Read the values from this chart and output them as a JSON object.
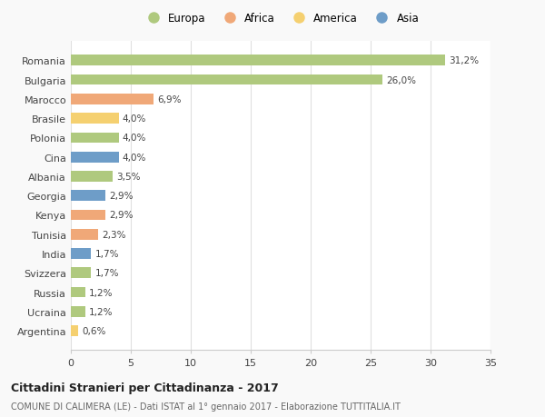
{
  "categories": [
    "Romania",
    "Bulgaria",
    "Marocco",
    "Brasile",
    "Polonia",
    "Cina",
    "Albania",
    "Georgia",
    "Kenya",
    "Tunisia",
    "India",
    "Svizzera",
    "Russia",
    "Ucraina",
    "Argentina"
  ],
  "values": [
    31.2,
    26.0,
    6.9,
    4.0,
    4.0,
    4.0,
    3.5,
    2.9,
    2.9,
    2.3,
    1.7,
    1.7,
    1.2,
    1.2,
    0.6
  ],
  "labels": [
    "31,2%",
    "26,0%",
    "6,9%",
    "4,0%",
    "4,0%",
    "4,0%",
    "3,5%",
    "2,9%",
    "2,9%",
    "2,3%",
    "1,7%",
    "1,7%",
    "1,2%",
    "1,2%",
    "0,6%"
  ],
  "colors": [
    "#afc97e",
    "#afc97e",
    "#f0a878",
    "#f5d070",
    "#afc97e",
    "#6e9dc8",
    "#afc97e",
    "#6e9dc8",
    "#f0a878",
    "#f0a878",
    "#6e9dc8",
    "#afc97e",
    "#afc97e",
    "#afc97e",
    "#f5d070"
  ],
  "legend_labels": [
    "Europa",
    "Africa",
    "America",
    "Asia"
  ],
  "legend_colors": [
    "#afc97e",
    "#f0a878",
    "#f5d070",
    "#6e9dc8"
  ],
  "title": "Cittadini Stranieri per Cittadinanza - 2017",
  "subtitle": "COMUNE DI CALIMERA (LE) - Dati ISTAT al 1° gennaio 2017 - Elaborazione TUTTITALIA.IT",
  "xlim": [
    0,
    35
  ],
  "xticks": [
    0,
    5,
    10,
    15,
    20,
    25,
    30,
    35
  ],
  "background_color": "#f9f9f9",
  "bar_background": "#ffffff",
  "grid_color": "#e0e0e0"
}
